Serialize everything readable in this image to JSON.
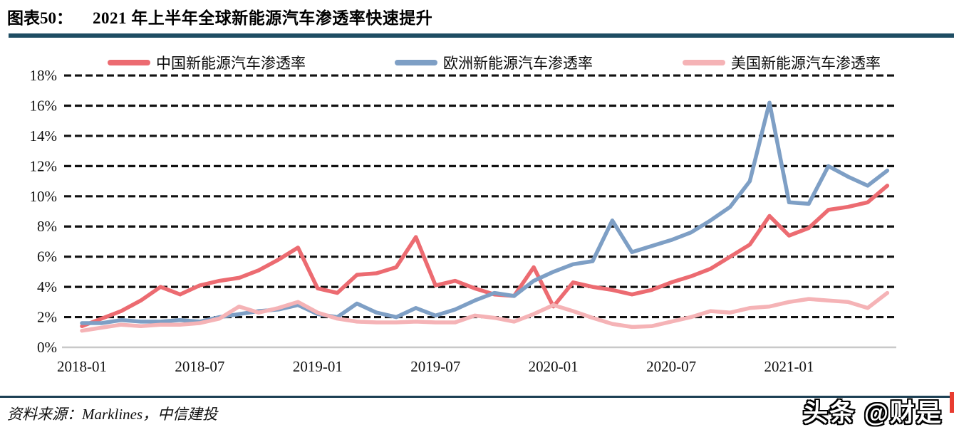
{
  "header": {
    "figure_label": "图表50：",
    "title": "2021 年上半年全球新能源汽车渗透率快速提升"
  },
  "footer": {
    "source": "资料来源：Marklines，中信建投",
    "watermark": "头条 @财是"
  },
  "colors": {
    "china_line": "#EC6B71",
    "europe_line": "#7E9FC5",
    "us_line": "#F5B3B6",
    "divider": "#1E4D63",
    "footer_rule": "#1C3F54",
    "gridline": "#111111",
    "zero_line": "#C9C9C9",
    "edge_sliver": "#E83C30"
  },
  "chart_data": {
    "type": "line",
    "title": "",
    "xlabel": "",
    "ylabel": "",
    "ylim": [
      0,
      18
    ],
    "ytick_step": 2,
    "ytick_suffix": "%",
    "grid": "horizontal-dashed",
    "legend_position": "top",
    "x": [
      "2018-01",
      "2018-02",
      "2018-03",
      "2018-04",
      "2018-05",
      "2018-06",
      "2018-07",
      "2018-08",
      "2018-09",
      "2018-10",
      "2018-11",
      "2018-12",
      "2019-01",
      "2019-02",
      "2019-03",
      "2019-04",
      "2019-05",
      "2019-06",
      "2019-07",
      "2019-08",
      "2019-09",
      "2019-10",
      "2019-11",
      "2019-12",
      "2020-01",
      "2020-02",
      "2020-03",
      "2020-04",
      "2020-05",
      "2020-06",
      "2020-07",
      "2020-08",
      "2020-09",
      "2020-10",
      "2020-11",
      "2020-12",
      "2021-01",
      "2021-02",
      "2021-03",
      "2021-04",
      "2021-05",
      "2021-06"
    ],
    "x_tick_labels": [
      "2018-01",
      "2018-07",
      "2019-01",
      "2019-07",
      "2020-01",
      "2020-07",
      "2021-01"
    ],
    "x_tick_every": 6,
    "series": [
      {
        "key": "china",
        "name": "中国新能源汽车渗透率",
        "color": "#EC6B71",
        "values": [
          1.4,
          1.9,
          2.4,
          3.1,
          4.0,
          3.5,
          4.1,
          4.4,
          4.6,
          5.1,
          5.8,
          6.6,
          3.9,
          3.6,
          4.8,
          4.9,
          5.3,
          7.3,
          4.1,
          4.4,
          3.9,
          3.5,
          3.4,
          5.3,
          2.7,
          4.3,
          4.0,
          3.8,
          3.5,
          3.8,
          4.3,
          4.7,
          5.2,
          6.0,
          6.8,
          8.7,
          7.4,
          7.9,
          9.1,
          9.3,
          9.6,
          10.7
        ]
      },
      {
        "key": "europe",
        "name": "欧洲新能源汽车渗透率",
        "color": "#7E9FC5",
        "values": [
          1.6,
          1.6,
          1.8,
          1.7,
          1.7,
          1.8,
          1.7,
          2.0,
          2.2,
          2.4,
          2.5,
          2.8,
          2.2,
          2.0,
          2.9,
          2.3,
          2.0,
          2.6,
          2.1,
          2.5,
          3.1,
          3.6,
          3.4,
          4.4,
          5.0,
          5.5,
          5.7,
          8.4,
          6.3,
          6.7,
          7.1,
          7.6,
          8.4,
          9.3,
          11.0,
          16.2,
          9.6,
          9.5,
          12.0,
          11.3,
          10.7,
          11.7
        ]
      },
      {
        "key": "us",
        "name": "美国新能源汽车渗透率",
        "color": "#F5B3B6",
        "values": [
          1.1,
          1.3,
          1.5,
          1.4,
          1.5,
          1.5,
          1.6,
          1.9,
          2.7,
          2.3,
          2.6,
          3.0,
          2.3,
          1.9,
          1.7,
          1.65,
          1.65,
          1.7,
          1.65,
          1.65,
          2.1,
          1.95,
          1.7,
          2.2,
          2.8,
          2.4,
          1.95,
          1.55,
          1.35,
          1.4,
          1.7,
          2.0,
          2.4,
          2.3,
          2.6,
          2.7,
          3.0,
          3.2,
          3.1,
          3.0,
          2.6,
          3.6
        ]
      }
    ]
  }
}
